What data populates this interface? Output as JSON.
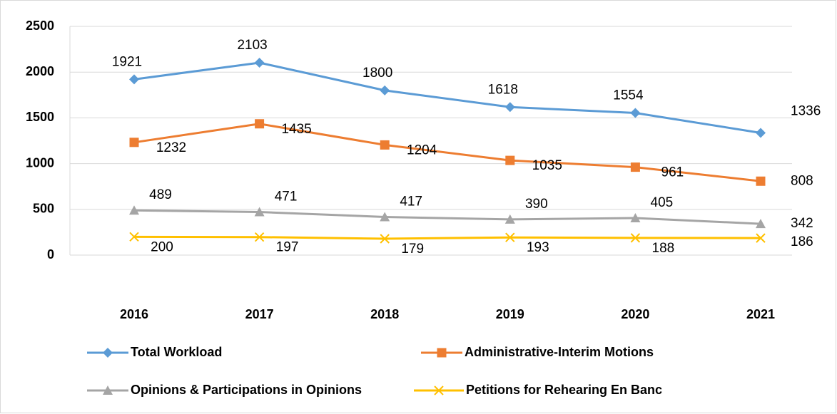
{
  "chart_data": {
    "type": "line",
    "categories": [
      "2016",
      "2017",
      "2018",
      "2019",
      "2020",
      "2021"
    ],
    "series": [
      {
        "name": "Total Workload",
        "color": "#5b9bd5",
        "marker": "diamond",
        "values": [
          1921,
          2103,
          1800,
          1618,
          1554,
          1336
        ]
      },
      {
        "name": "Administrative-Interim Motions",
        "color": "#ed7d31",
        "marker": "square",
        "values": [
          1232,
          1435,
          1204,
          1035,
          961,
          808
        ]
      },
      {
        "name": "Opinions & Participations in Opinions",
        "color": "#a5a5a5",
        "marker": "triangle",
        "values": [
          489,
          471,
          417,
          390,
          405,
          342
        ]
      },
      {
        "name": "Petitions for Rehearing En Banc",
        "color": "#ffc000",
        "marker": "x",
        "values": [
          200,
          197,
          179,
          193,
          188,
          186
        ]
      }
    ],
    "ylim": [
      0,
      2500
    ],
    "yticks": [
      0,
      500,
      1000,
      1500,
      2000,
      2500
    ],
    "grid": true,
    "legend": "bottom",
    "data_labels": true
  }
}
